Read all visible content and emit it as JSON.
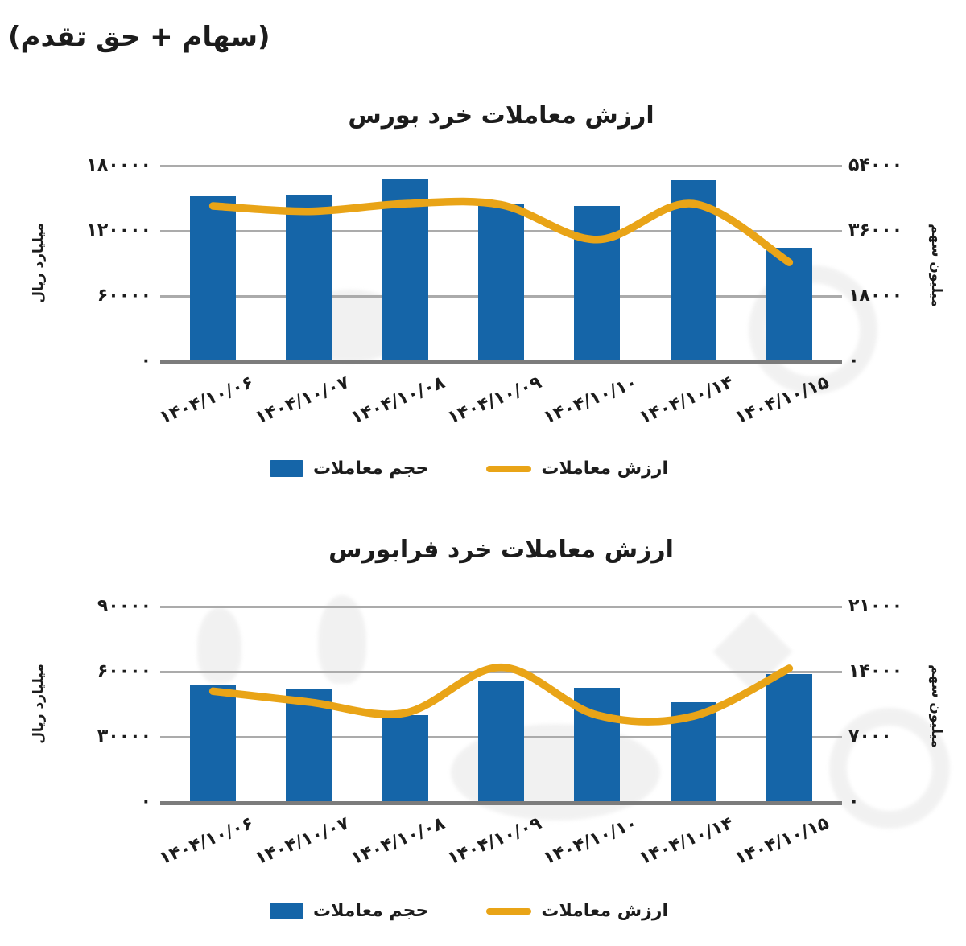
{
  "page": {
    "corner_title": "(سهام + حق تقدم)"
  },
  "colors": {
    "bar_blue": "#1565A8",
    "line_orange": "#E9A417",
    "gridline": "#ABABAB",
    "baseline": "#7C7C7C",
    "text": "#1C1C1C",
    "background": "#FFFFFF"
  },
  "chart_data": [
    {
      "type": "bar",
      "subtype": "bar+line combo, dual axis",
      "title": "ارزش معاملات خرد بورس",
      "categories": [
        "۱۴۰۴/۱۰/۰۶",
        "۱۴۰۴/۱۰/۰۷",
        "۱۴۰۴/۱۰/۰۸",
        "۱۴۰۴/۱۰/۰۹",
        "۱۴۰۴/۱۰/۱۰",
        "۱۴۰۴/۱۰/۱۴",
        "۱۴۰۴/۱۰/۱۵"
      ],
      "series": [
        {
          "name": "حجم معاملات",
          "type": "bar",
          "axis": "right",
          "color": "#1565A8",
          "values": [
            45500,
            46000,
            50300,
            43400,
            43000,
            50000,
            31400
          ]
        },
        {
          "name": "ارزش معاملات",
          "type": "line",
          "axis": "left",
          "color": "#E9A417",
          "values": [
            143000,
            138000,
            145000,
            144000,
            112000,
            145000,
            91000
          ]
        }
      ],
      "left_axis": {
        "title": "میلیارد ریال",
        "min": 0,
        "max": 180000,
        "ticks": [
          "۱۸۰۰۰۰",
          "۱۲۰۰۰۰",
          "۶۰۰۰۰",
          "۰"
        ]
      },
      "right_axis": {
        "title": "میلیون سهم",
        "min": 0,
        "max": 54000,
        "ticks": [
          "۵۴۰۰۰",
          "۳۶۰۰۰",
          "۱۸۰۰۰",
          "۰"
        ]
      },
      "grid": true,
      "legend_position": "bottom"
    },
    {
      "type": "bar",
      "subtype": "bar+line combo, dual axis",
      "title": "ارزش معاملات خرد فرابورس",
      "categories": [
        "۱۴۰۴/۱۰/۰۶",
        "۱۴۰۴/۱۰/۰۷",
        "۱۴۰۴/۱۰/۰۸",
        "۱۴۰۴/۱۰/۰۹",
        "۱۴۰۴/۱۰/۱۰",
        "۱۴۰۴/۱۰/۱۴",
        "۱۴۰۴/۱۰/۱۵"
      ],
      "series": [
        {
          "name": "حجم معاملات",
          "type": "bar",
          "axis": "right",
          "color": "#1565A8",
          "values": [
            12500,
            12200,
            9300,
            13000,
            12300,
            10700,
            13700
          ]
        },
        {
          "name": "ارزش معاملات",
          "type": "line",
          "axis": "left",
          "color": "#E9A417",
          "values": [
            51000,
            46000,
            41000,
            62000,
            40000,
            39500,
            61500
          ]
        }
      ],
      "left_axis": {
        "title": "میلیارد ریال",
        "min": 0,
        "max": 90000,
        "ticks": [
          "۹۰۰۰۰",
          "۶۰۰۰۰",
          "۳۰۰۰۰",
          "۰"
        ]
      },
      "right_axis": {
        "title": "میلیون سهم",
        "min": 0,
        "max": 21000,
        "ticks": [
          "۲۱۰۰۰",
          "۱۴۰۰۰",
          "۷۰۰۰",
          "۰"
        ]
      },
      "grid": true,
      "legend_position": "bottom"
    }
  ]
}
